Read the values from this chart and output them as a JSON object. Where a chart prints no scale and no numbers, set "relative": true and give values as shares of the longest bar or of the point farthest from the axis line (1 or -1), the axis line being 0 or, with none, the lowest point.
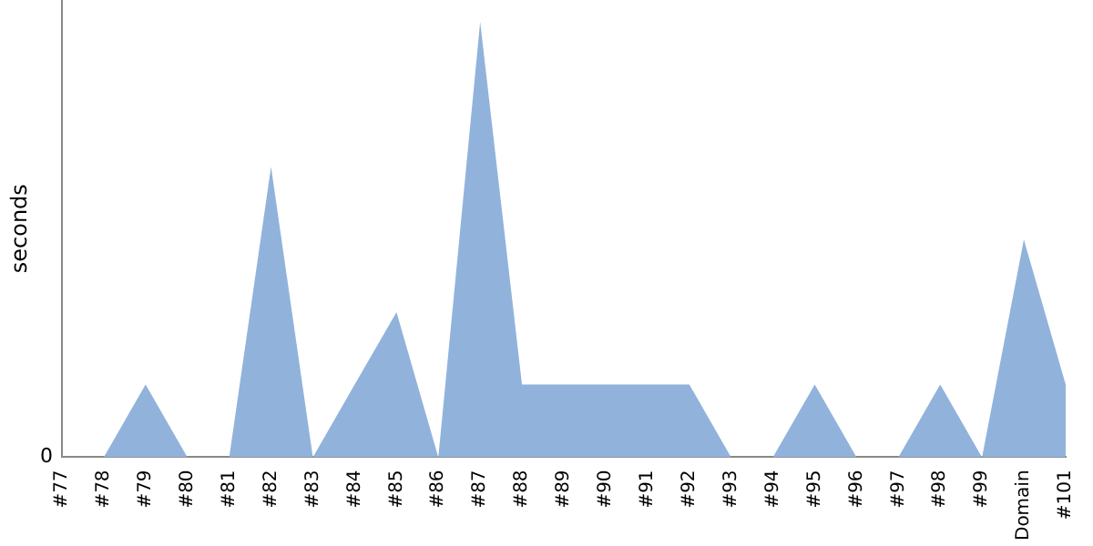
{
  "chart_data": {
    "type": "area",
    "ylabel": "seconds",
    "relative": true,
    "annotations": [
      "0"
    ],
    "categories": [
      "#77",
      "#78",
      "#79",
      "#80",
      "#81",
      "#82",
      "#83",
      "#84",
      "#85",
      "#86",
      "#87",
      "#88",
      "#89",
      "#90",
      "#91",
      "#92",
      "#93",
      "#94",
      "#95",
      "#96",
      "#97",
      "#98",
      "#99",
      "Domain",
      "#101"
    ],
    "series": [
      {
        "color": "#91b3db",
        "values": [
          0,
          0,
          0.167,
          0,
          0,
          0.667,
          0,
          0.167,
          0.333,
          0,
          1,
          0.167,
          0.167,
          0.167,
          0.167,
          0.167,
          0,
          0,
          0.167,
          0,
          0,
          0.167,
          0,
          0.5,
          0.167
        ]
      }
    ]
  }
}
